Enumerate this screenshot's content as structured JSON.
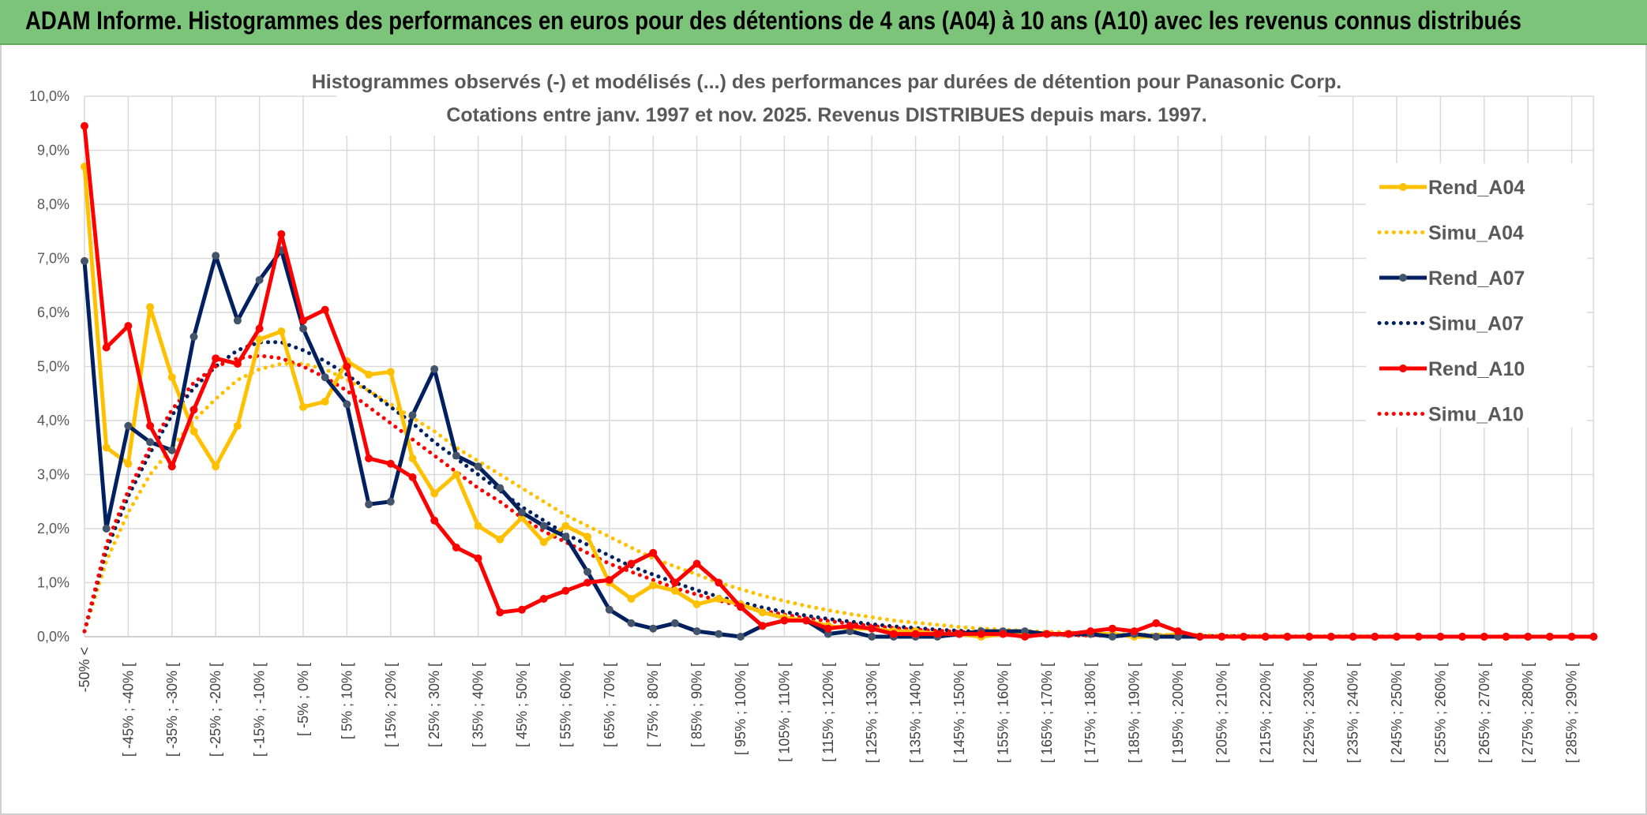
{
  "banner": {
    "title": "ADAM Informe. Histogrammes des performances en euros pour des détentions de 4 ans (A04) à 10 ans (A10) avec les revenus connus distribués"
  },
  "colors": {
    "banner_bg": "#7dc47b",
    "A04": "#ffc000",
    "A07": "#002060",
    "A10": "#ff0000",
    "grid": "#d9d9d9"
  },
  "chart_data": {
    "type": "line",
    "title": "Histogrammes observés (-) et modélisés (...) des performances par durées de détention pour Panasonic Corp.",
    "subtitle": "Cotations entre janv. 1997 et nov. 2025. Revenus DISTRIBUES depuis mars. 1997.",
    "ylim": [
      0,
      10
    ],
    "y_ticks": [
      "0,0%",
      "1,0%",
      "2,0%",
      "3,0%",
      "4,0%",
      "5,0%",
      "6,0%",
      "7,0%",
      "8,0%",
      "9,0%",
      "10,0%"
    ],
    "x_labels": [
      "-50% <",
      "[ -45% ; -40% [",
      "[ -35% ; -30% [",
      "[ -25% ; -20% [",
      "[ -15% ; -10% [",
      "[ -5% ; 0% [",
      "[ 5% ; 10% [",
      "[ 15% ; 20% [",
      "[ 25% ; 30% [",
      "[ 35% ; 40% [",
      "[ 45% ; 50% [",
      "[ 55% ; 60% [",
      "[ 65% ; 70% [",
      "[ 75% ; 80% [",
      "[ 85% ; 90% [",
      "[ 95% ; 100% [",
      "[ 105% ; 110% [",
      "[ 115% ; 120% [",
      "[ 125% ; 130% [",
      "[ 135% ; 140% [",
      "[ 145% ; 150% [",
      "[ 155% ; 160% [",
      "[ 165% ; 170% [",
      "[ 175% ; 180% [",
      "[ 185% ; 190% [",
      "[ 195% ; 200% [",
      "[ 205% ; 210% [",
      "[ 215% ; 220% [",
      "[ 225% ; 230% [",
      "[ 235% ; 240% [",
      "[ 245% ; 250% [",
      "[ 255% ; 260% [",
      "[ 265% ; 270% [",
      "[ 275% ; 280% [",
      "[ 285% ; 290% ["
    ],
    "legend_position": "right",
    "grid": true,
    "series": [
      {
        "name": "Rend_A04",
        "style": "solid",
        "color": "#ffc000",
        "values": [
          8.7,
          3.5,
          3.2,
          6.1,
          4.8,
          3.8,
          3.15,
          3.9,
          5.5,
          5.65,
          4.25,
          4.35,
          5.1,
          4.85,
          4.9,
          3.3,
          2.65,
          3.0,
          2.05,
          1.8,
          2.2,
          1.75,
          2.05,
          1.85,
          1.0,
          0.7,
          0.95,
          0.85,
          0.6,
          0.7,
          0.6,
          0.45,
          0.35,
          0.3,
          0.2,
          0.15,
          0.15,
          0.1,
          0.1,
          0.05,
          0.05,
          0.0,
          0.05,
          0.05,
          0.05,
          0.05,
          0.05,
          0.05,
          0.0,
          0.0,
          0.05,
          0.0,
          0.0,
          0.0,
          0.0,
          0.0,
          0.0,
          0.0,
          0.0,
          0.0,
          0.0,
          0.0,
          0.0,
          0.0,
          0.0,
          0.0,
          0.0,
          0.0,
          0.0,
          0.0
        ]
      },
      {
        "name": "Simu_A04",
        "style": "dotted",
        "color": "#ffc000",
        "values": [
          0.1,
          1.4,
          2.3,
          3.0,
          3.5,
          4.0,
          4.4,
          4.75,
          4.95,
          5.05,
          5.05,
          4.95,
          4.75,
          4.55,
          4.3,
          4.05,
          3.8,
          3.5,
          3.25,
          3.0,
          2.75,
          2.5,
          2.25,
          2.05,
          1.85,
          1.65,
          1.45,
          1.3,
          1.15,
          1.0,
          0.88,
          0.76,
          0.66,
          0.57,
          0.49,
          0.42,
          0.36,
          0.3,
          0.26,
          0.22,
          0.18,
          0.15,
          0.13,
          0.11,
          0.09,
          0.08,
          0.06,
          0.05,
          0.04,
          0.04,
          0.03,
          0.03,
          0.02,
          0.02,
          0.02,
          0.01,
          0.01,
          0.01,
          0.01,
          0.01,
          0.01,
          0.0,
          0.0,
          0.0,
          0.0,
          0.0,
          0.0,
          0.0,
          0.0,
          0.0
        ]
      },
      {
        "name": "Rend_A07",
        "style": "solid",
        "color": "#002060",
        "values": [
          6.95,
          2.0,
          3.9,
          3.6,
          3.45,
          5.55,
          7.05,
          5.85,
          6.6,
          7.15,
          5.7,
          4.8,
          4.3,
          2.45,
          2.5,
          4.1,
          4.95,
          3.35,
          3.15,
          2.75,
          2.3,
          2.05,
          1.85,
          1.2,
          0.5,
          0.25,
          0.15,
          0.25,
          0.1,
          0.05,
          0.0,
          0.2,
          0.3,
          0.3,
          0.05,
          0.1,
          0.0,
          0.0,
          0.0,
          0.0,
          0.05,
          0.1,
          0.1,
          0.1,
          0.05,
          0.05,
          0.05,
          0.0,
          0.05,
          0.0,
          0.0,
          0.0,
          0.0,
          0.0,
          0.0,
          0.0,
          0.0,
          0.0,
          0.0,
          0.0,
          0.0,
          0.0,
          0.0,
          0.0,
          0.0,
          0.0,
          0.0,
          0.0,
          0.0,
          0.0
        ]
      },
      {
        "name": "Simu_A07",
        "style": "dotted",
        "color": "#002060",
        "values": [
          0.1,
          1.6,
          2.6,
          3.4,
          4.1,
          4.6,
          5.0,
          5.3,
          5.45,
          5.45,
          5.3,
          5.1,
          4.85,
          4.55,
          4.25,
          3.95,
          3.6,
          3.3,
          3.0,
          2.7,
          2.4,
          2.15,
          1.9,
          1.7,
          1.5,
          1.3,
          1.15,
          1.0,
          0.86,
          0.74,
          0.64,
          0.54,
          0.46,
          0.39,
          0.33,
          0.28,
          0.23,
          0.19,
          0.16,
          0.13,
          0.11,
          0.09,
          0.07,
          0.06,
          0.05,
          0.04,
          0.03,
          0.03,
          0.02,
          0.02,
          0.01,
          0.01,
          0.01,
          0.01,
          0.0,
          0.0,
          0.0,
          0.0,
          0.0,
          0.0,
          0.0,
          0.0,
          0.0,
          0.0,
          0.0,
          0.0,
          0.0,
          0.0,
          0.0,
          0.0
        ]
      },
      {
        "name": "Rend_A10",
        "style": "solid",
        "color": "#ff0000",
        "values": [
          9.45,
          5.35,
          5.75,
          3.9,
          3.15,
          4.2,
          5.15,
          5.05,
          5.7,
          7.45,
          5.85,
          6.05,
          5.0,
          3.3,
          3.2,
          2.95,
          2.15,
          1.65,
          1.45,
          0.45,
          0.5,
          0.7,
          0.85,
          1.0,
          1.05,
          1.35,
          1.55,
          1.0,
          1.35,
          1.0,
          0.55,
          0.2,
          0.3,
          0.3,
          0.15,
          0.2,
          0.15,
          0.05,
          0.05,
          0.05,
          0.05,
          0.05,
          0.05,
          0.0,
          0.05,
          0.05,
          0.1,
          0.15,
          0.1,
          0.25,
          0.1,
          0.0,
          0.0,
          0.0,
          0.0,
          0.0,
          0.0,
          0.0,
          0.0,
          0.0,
          0.0,
          0.0,
          0.0,
          0.0,
          0.0,
          0.0,
          0.0,
          0.0,
          0.0,
          0.0
        ]
      },
      {
        "name": "Simu_A10",
        "style": "dotted",
        "color": "#ff0000",
        "values": [
          0.1,
          1.7,
          2.7,
          3.5,
          4.2,
          4.7,
          5.0,
          5.15,
          5.2,
          5.15,
          5.0,
          4.8,
          4.55,
          4.25,
          3.95,
          3.65,
          3.35,
          3.05,
          2.75,
          2.5,
          2.2,
          1.95,
          1.75,
          1.55,
          1.35,
          1.2,
          1.05,
          0.9,
          0.78,
          0.67,
          0.57,
          0.48,
          0.41,
          0.34,
          0.29,
          0.24,
          0.2,
          0.16,
          0.13,
          0.11,
          0.09,
          0.07,
          0.06,
          0.05,
          0.04,
          0.03,
          0.02,
          0.02,
          0.01,
          0.01,
          0.01,
          0.01,
          0.0,
          0.0,
          0.0,
          0.0,
          0.0,
          0.0,
          0.0,
          0.0,
          0.0,
          0.0,
          0.0,
          0.0,
          0.0,
          0.0,
          0.0,
          0.0,
          0.0,
          0.0
        ]
      }
    ]
  }
}
